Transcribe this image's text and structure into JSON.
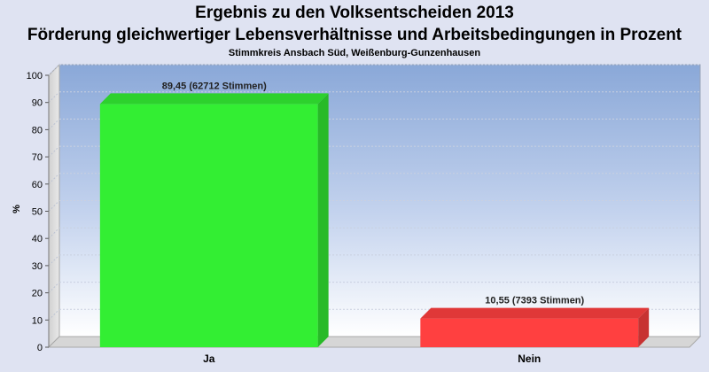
{
  "title": "Ergebnis zu den Volksentscheiden 2013",
  "subtitle": "Förderung gleichwertiger Lebensverhältnisse und Arbeitsbedingungen in Prozent",
  "subsubtitle": "Stimmkreis Ansbach Süd, Weißenburg-Gunzenhausen",
  "colors": {
    "ja": "#33ee33",
    "nein": "#ff4040"
  },
  "chart_data": {
    "type": "bar",
    "title": "Ergebnis zu den Volksentscheiden 2013",
    "subtitle": "Förderung gleichwertiger Lebensverhältnisse und Arbeitsbedingungen in Prozent",
    "xlabel": "",
    "ylabel": "%",
    "ylim": [
      0,
      100
    ],
    "yticks": [
      "0",
      "10",
      "20",
      "30",
      "40",
      "50",
      "60",
      "70",
      "80",
      "90",
      "100"
    ],
    "grid": true,
    "categories": [
      "Ja",
      "Nein"
    ],
    "values": [
      89.45,
      10.55
    ],
    "data_labels": [
      "89,45 (62712 Stimmen)",
      "10,55 (7393 Stimmen)"
    ]
  }
}
